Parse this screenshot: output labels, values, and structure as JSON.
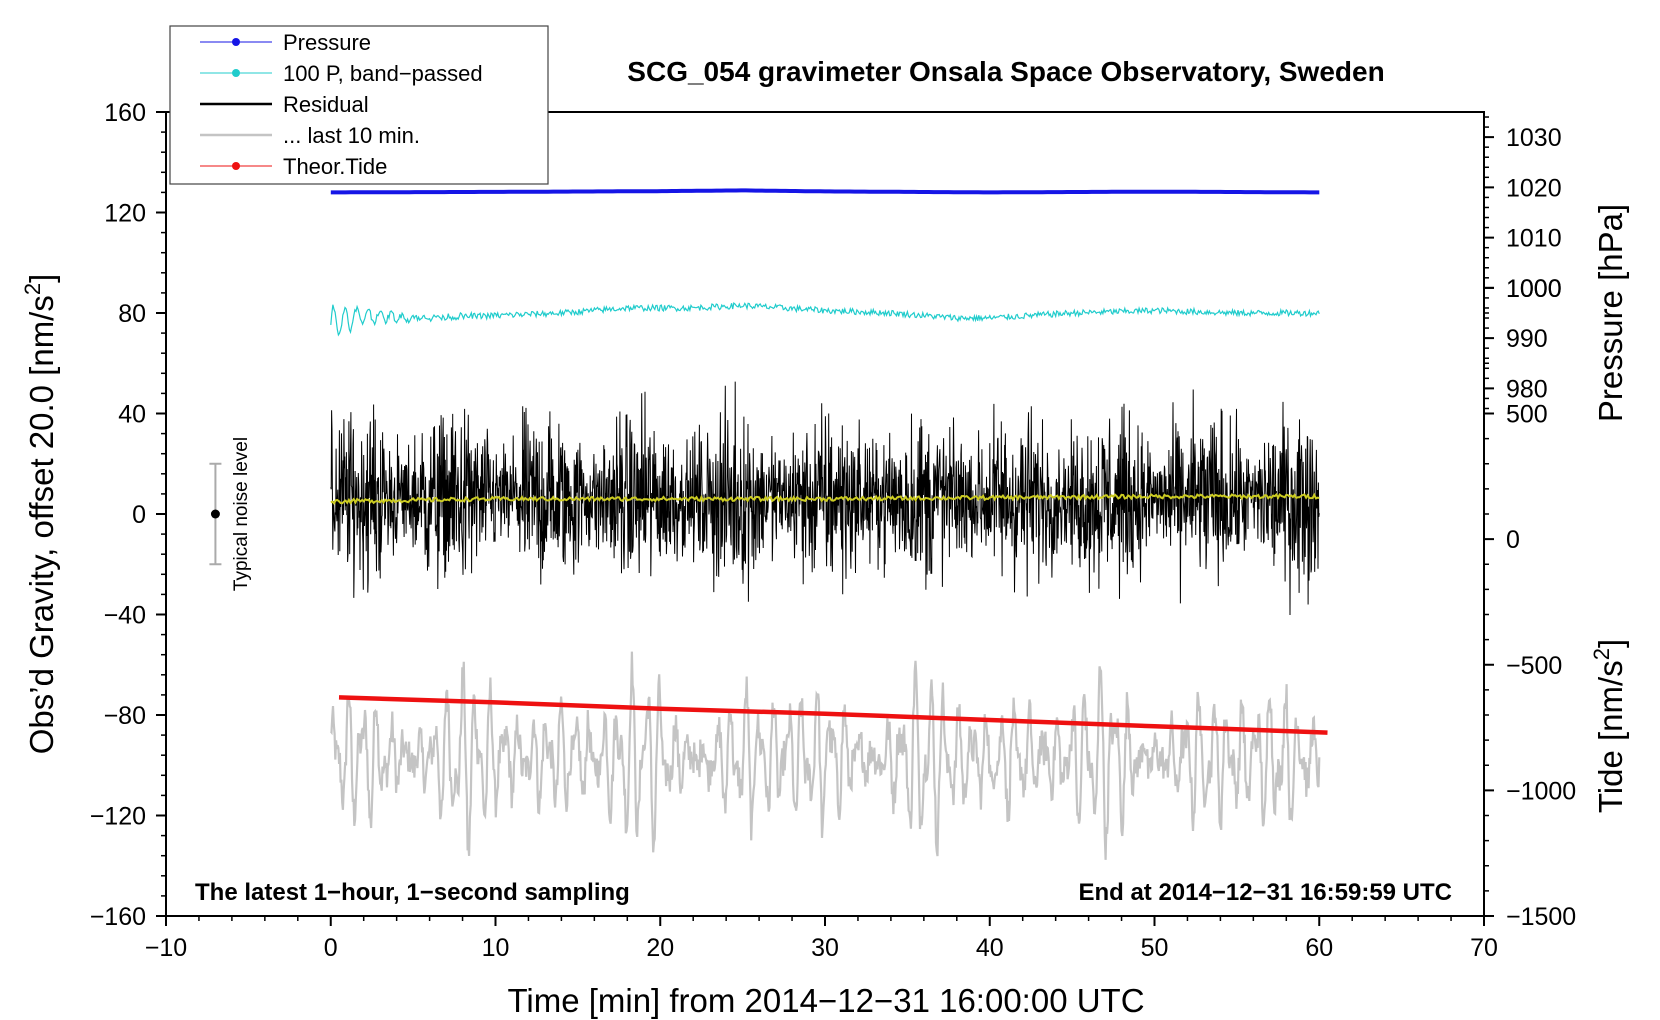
{
  "chart_data": {
    "type": "line",
    "title": "SCG_054 gravimeter Onsala Space Observatory, Sweden",
    "xlabel": "Time [min] from 2014−12−31 16:00:00 UTC",
    "ylabel_left": "Obs’d Gravity, offset 20.0 [nm/s",
    "ylabel_left_sup": "2",
    "ylabel_left_end": "]",
    "ylabel_right_pressure": "Pressure [hPa]",
    "ylabel_right_tide": "Tide [nm/s",
    "ylabel_right_tide_sup": "2",
    "ylabel_right_tide_end": "]",
    "xlim": [
      -10,
      70
    ],
    "ylim_left": [
      -160,
      160
    ],
    "x_ticks": [
      -10,
      0,
      10,
      20,
      30,
      40,
      50,
      60,
      70
    ],
    "x_tick_labels": [
      "−10",
      "0",
      "10",
      "20",
      "30",
      "40",
      "50",
      "60",
      "70"
    ],
    "y_ticks_left": [
      160,
      120,
      80,
      40,
      0,
      -40,
      -80,
      -120,
      -160
    ],
    "y_tick_labels_left": [
      "160",
      "120",
      "80",
      "40",
      "0",
      "−40",
      "−80",
      "−120",
      "−160"
    ],
    "pressure_axis": {
      "ticks_hpa": [
        1030,
        1020,
        1010,
        1000,
        990,
        980
      ],
      "tick_labels": [
        "1030",
        "1020",
        "1010",
        "1000",
        "990",
        "980"
      ],
      "hpa_at_left_160": 1035,
      "hpa_per_left_unit": 0.5
    },
    "tide_axis": {
      "ticks": [
        1000,
        500,
        0,
        -500,
        -1000,
        -1500
      ],
      "tick_labels": [
        "1000",
        "500",
        "0",
        "−500",
        "−1000",
        "−1500"
      ],
      "tide_at_left_minus160": -1500,
      "tide_per_left_unit": 10
    },
    "legend": {
      "position": "top-left",
      "entries": [
        {
          "label": "Pressure",
          "color": "#1515e6",
          "marker": true
        },
        {
          "label": "100 P, band−passed",
          "color": "#20cccc",
          "marker": true
        },
        {
          "label": "Residual",
          "color": "#000000",
          "marker": false
        },
        {
          "label": "... last 10 min.",
          "color": "#c4c4c4",
          "marker": false
        },
        {
          "label": "Theor.Tide",
          "color": "#ee1111",
          "marker": true
        }
      ]
    },
    "series": [
      {
        "name": "Pressure",
        "color": "#1515e6",
        "x": [
          0,
          10,
          20,
          25,
          30,
          40,
          50,
          60
        ],
        "y": [
          128,
          128.2,
          128.5,
          128.8,
          128.4,
          128,
          128.3,
          128
        ]
      },
      {
        "name": "100 P, band−passed",
        "color": "#20cccc",
        "x": [
          0,
          2,
          5,
          10,
          14,
          18,
          22,
          25,
          30,
          34,
          38,
          40,
          45,
          50,
          55,
          60
        ],
        "y": [
          76,
          79,
          78,
          79,
          80,
          82,
          82,
          83,
          81,
          80,
          78,
          78,
          80,
          81,
          80,
          80
        ]
      },
      {
        "name": "Residual",
        "color": "#000000",
        "x_range": [
          0,
          60
        ],
        "center": 6,
        "amplitude": 52
      },
      {
        "name": "Residual smoothed",
        "color": "#cccc22",
        "x": [
          0,
          10,
          20,
          30,
          40,
          50,
          60
        ],
        "y": [
          5,
          6,
          6,
          6,
          6.5,
          7,
          7
        ]
      },
      {
        "name": "... last 10 min.",
        "color": "#c4c4c4",
        "x_range": [
          0,
          60
        ],
        "center": -97,
        "amplitude": 45
      },
      {
        "name": "Theor.Tide",
        "color": "#ee1111",
        "x": [
          0.5,
          10,
          20,
          30,
          40,
          50,
          60.5
        ],
        "y": [
          -73,
          -75,
          -77.5,
          -79.5,
          -82,
          -84.5,
          -87
        ]
      }
    ],
    "noise_bar": {
      "x": -7,
      "center": 0,
      "half_range": 20,
      "label": "Typical noise level"
    },
    "annotations": {
      "bottom_left": "The latest 1−hour, 1−second sampling",
      "bottom_right": "End at 2014−12−31 16:59:59 UTC"
    }
  }
}
